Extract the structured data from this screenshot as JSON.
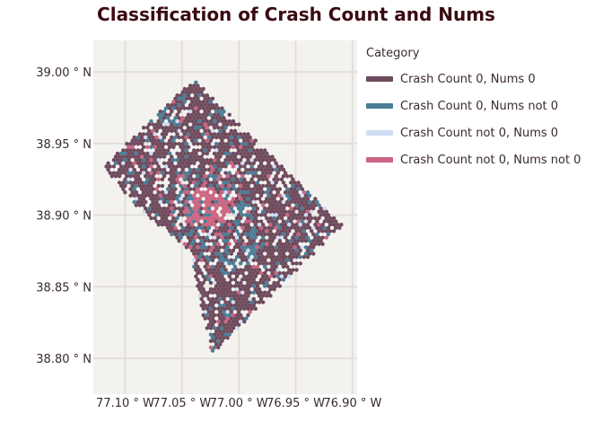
{
  "title": "Classification of Crash Count and Nums",
  "colors": {
    "panel_bg": "#f4f2ef",
    "grid": "#e2dfdb"
  },
  "chart_data": {
    "type": "heatmap",
    "map_kind": "hexbin",
    "title": "Classification of Crash Count and Nums",
    "xlabel": "",
    "ylabel": "",
    "x_ticks": [
      {
        "value": -77.1,
        "label": "77.10 ° W"
      },
      {
        "value": -77.05,
        "label": "77.05 ° W"
      },
      {
        "value": -77.0,
        "label": "77.00 ° W"
      },
      {
        "value": -76.95,
        "label": "76.95 ° W"
      },
      {
        "value": -76.9,
        "label": "76.90 ° W"
      }
    ],
    "y_ticks": [
      {
        "value": 38.8,
        "label": "38.80 ° N"
      },
      {
        "value": 38.85,
        "label": "38.85 ° N"
      },
      {
        "value": 38.9,
        "label": "38.90 ° N"
      },
      {
        "value": 38.95,
        "label": "38.95 ° N"
      },
      {
        "value": 39.0,
        "label": "39.00 ° N"
      }
    ],
    "xlim": [
      -77.128,
      -76.896
    ],
    "ylim": [
      38.775,
      39.022
    ],
    "grid": true,
    "legend_title": "Category",
    "legend_position": "right",
    "categories": [
      {
        "label": "Crash Count 0, Nums 0",
        "color": "#6e4a5c"
      },
      {
        "label": "Crash Count 0, Nums not 0",
        "color": "#4a7d96"
      },
      {
        "label": "Crash Count not 0, Nums 0",
        "color": "#d0dcf2"
      },
      {
        "label": "Crash Count not 0, Nums not 0",
        "color": "#cc6482"
      }
    ],
    "boundary_lonlat": [
      [
        -77.04,
        38.995
      ],
      [
        -76.909,
        38.893
      ],
      [
        -77.039,
        38.791
      ],
      [
        -77.024,
        38.803
      ],
      [
        -77.034,
        38.84
      ],
      [
        -77.042,
        38.875
      ],
      [
        -77.089,
        38.905
      ],
      [
        -77.119,
        38.934
      ]
    ],
    "hotspot_lonlat": [
      -77.025,
      38.905
    ],
    "secondary_blue_lonlat": [
      -77.0,
      38.88
    ]
  }
}
